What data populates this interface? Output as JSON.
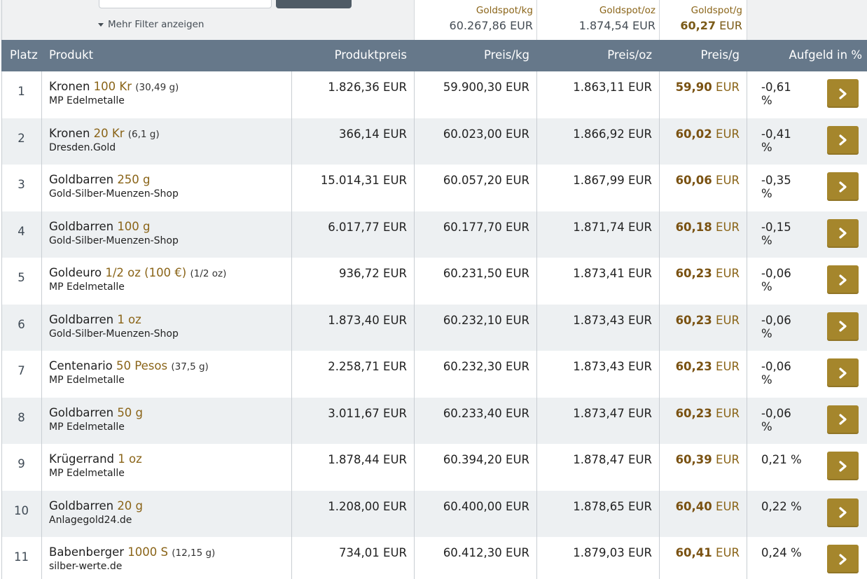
{
  "filters": {
    "more_filter_label": "Mehr Filter anzeigen"
  },
  "spot": {
    "kg_label": "Goldspot/kg",
    "kg_value": "60.267,86 EUR",
    "oz_label": "Goldspot/oz",
    "oz_value": "1.874,54 EUR",
    "g_label": "Goldspot/g",
    "g_value_num": "60,27",
    "g_value_unit": "EUR"
  },
  "table": {
    "headers": {
      "rank": "Platz",
      "product": "Produkt",
      "price": "Produktpreis",
      "per_kg": "Preis/kg",
      "per_oz": "Preis/oz",
      "per_g": "Preis/g",
      "premium": "Aufgeld in %"
    },
    "currency": "EUR",
    "rows": [
      {
        "rank": "1",
        "name": "Kronen",
        "size": "100 Kr",
        "weight": "(30,49 g)",
        "dealer": "MP Edelmetalle",
        "price": "1.826,36 EUR",
        "per_kg": "59.900,30 EUR",
        "per_oz": "1.863,11 EUR",
        "per_g": "59,90",
        "premium": "-0,61 %"
      },
      {
        "rank": "2",
        "name": "Kronen",
        "size": "20 Kr",
        "weight": "(6,1 g)",
        "dealer": "Dresden.Gold",
        "price": "366,14 EUR",
        "per_kg": "60.023,00 EUR",
        "per_oz": "1.866,92 EUR",
        "per_g": "60,02",
        "premium": "-0,41 %"
      },
      {
        "rank": "3",
        "name": "Goldbarren",
        "size": "250 g",
        "weight": "",
        "dealer": "Gold-Silber-Muenzen-Shop",
        "price": "15.014,31 EUR",
        "per_kg": "60.057,20 EUR",
        "per_oz": "1.867,99 EUR",
        "per_g": "60,06",
        "premium": "-0,35 %"
      },
      {
        "rank": "4",
        "name": "Goldbarren",
        "size": "100 g",
        "weight": "",
        "dealer": "Gold-Silber-Muenzen-Shop",
        "price": "6.017,77 EUR",
        "per_kg": "60.177,70 EUR",
        "per_oz": "1.871,74 EUR",
        "per_g": "60,18",
        "premium": "-0,15 %"
      },
      {
        "rank": "5",
        "name": "Goldeuro",
        "size": "1/2 oz (100 €)",
        "weight": "(1/2 oz)",
        "dealer": "MP Edelmetalle",
        "price": "936,72 EUR",
        "per_kg": "60.231,50 EUR",
        "per_oz": "1.873,41 EUR",
        "per_g": "60,23",
        "premium": "-0,06 %"
      },
      {
        "rank": "6",
        "name": "Goldbarren",
        "size": "1 oz",
        "weight": "",
        "dealer": "Gold-Silber-Muenzen-Shop",
        "price": "1.873,40 EUR",
        "per_kg": "60.232,10 EUR",
        "per_oz": "1.873,43 EUR",
        "per_g": "60,23",
        "premium": "-0,06 %"
      },
      {
        "rank": "7",
        "name": "Centenario",
        "size": "50 Pesos",
        "weight": "(37,5 g)",
        "dealer": "MP Edelmetalle",
        "price": "2.258,71 EUR",
        "per_kg": "60.232,30 EUR",
        "per_oz": "1.873,43 EUR",
        "per_g": "60,23",
        "premium": "-0,06 %"
      },
      {
        "rank": "8",
        "name": "Goldbarren",
        "size": "50 g",
        "weight": "",
        "dealer": "MP Edelmetalle",
        "price": "3.011,67 EUR",
        "per_kg": "60.233,40 EUR",
        "per_oz": "1.873,47 EUR",
        "per_g": "60,23",
        "premium": "-0,06 %"
      },
      {
        "rank": "9",
        "name": "Krügerrand",
        "size": "1 oz",
        "weight": "",
        "dealer": "MP Edelmetalle",
        "price": "1.878,44 EUR",
        "per_kg": "60.394,20 EUR",
        "per_oz": "1.878,47 EUR",
        "per_g": "60,39",
        "premium": "0,21 %"
      },
      {
        "rank": "10",
        "name": "Goldbarren",
        "size": "20 g",
        "weight": "",
        "dealer": "Anlagegold24.de",
        "price": "1.208,00 EUR",
        "per_kg": "60.400,00 EUR",
        "per_oz": "1.878,65 EUR",
        "per_g": "60,40",
        "premium": "0,22 %"
      },
      {
        "rank": "11",
        "name": "Babenberger",
        "size": "1000 S",
        "weight": "(12,15 g)",
        "dealer": "silber-werte.de",
        "price": "734,01 EUR",
        "per_kg": "60.412,30 EUR",
        "per_oz": "1.879,03 EUR",
        "per_g": "60,41",
        "premium": "0,24 %"
      }
    ]
  },
  "colors": {
    "header_bg": "#66788a",
    "accent_gold": "#a5862c",
    "gold_text": "#8a6418",
    "row_alt": "#edf0f2"
  },
  "icons": {
    "row_action": "chevron-right-icon",
    "filter_toggle": "caret-down-icon"
  }
}
